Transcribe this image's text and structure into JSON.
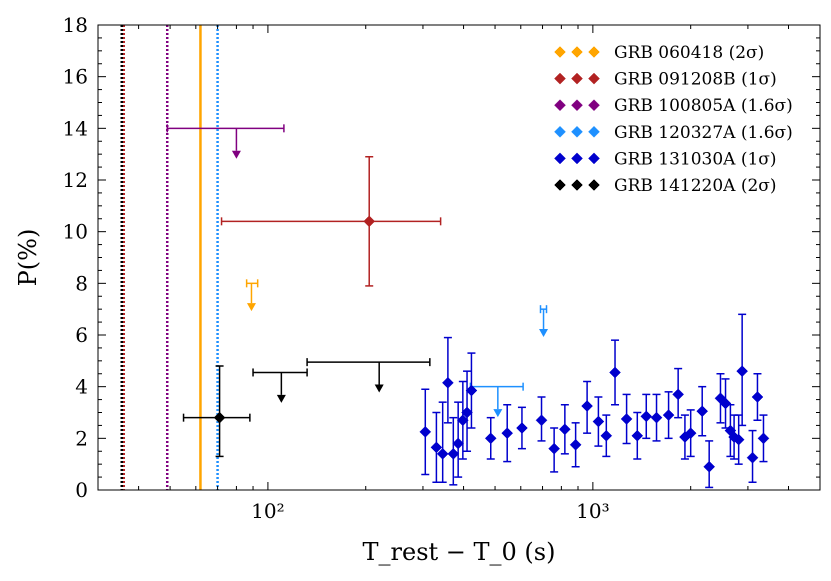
{
  "chart_data": {
    "type": "scatter",
    "title": "",
    "xlabel": "T_rest − T_0 (s)",
    "ylabel": "P(%)",
    "xscale": "log",
    "xlim": [
      30,
      5000
    ],
    "ylim": [
      0,
      18
    ],
    "xticks": [
      {
        "value": 100,
        "label": "10²"
      },
      {
        "value": 1000,
        "label": "10³"
      }
    ],
    "yticks": [
      0,
      2,
      4,
      6,
      8,
      10,
      12,
      14,
      16,
      18
    ],
    "legend_position": "top-right",
    "series": [
      {
        "name": "GRB 060418 (2σ)",
        "color": "#FFA500",
        "vline": {
          "x": 62,
          "style": "solid"
        },
        "upper_limits": [
          {
            "x": 89,
            "xerr": [
              86,
              93
            ],
            "y": 8.0,
            "drop": 1.0
          }
        ]
      },
      {
        "name": "GRB 091208B (1σ)",
        "color": "#B22222",
        "vline": {
          "x": 36,
          "style": "dotted"
        },
        "points": [
          {
            "x": 205,
            "y": 10.4,
            "xerr": [
              72,
              340
            ],
            "yerr": [
              7.9,
              12.9
            ]
          }
        ]
      },
      {
        "name": "GRB 100805A (1.6σ)",
        "color": "#800080",
        "vline": {
          "x": 49,
          "style": "dotted"
        },
        "upper_limits": [
          {
            "x": 80,
            "xerr": [
              49,
              112
            ],
            "y": 14.0,
            "drop": 1.1
          }
        ]
      },
      {
        "name": "GRB 120327A (1.6σ)",
        "color": "#1E90FF",
        "vline": {
          "x": 70,
          "style": "dotted"
        },
        "upper_limits": [
          {
            "x": 510,
            "xerr": [
              420,
              610
            ],
            "y": 4.0,
            "drop": 1.1
          },
          {
            "x": 705,
            "xerr": [
              690,
              720
            ],
            "y": 7.0,
            "drop": 1.0
          }
        ]
      },
      {
        "name": "GRB 131030A (1σ)",
        "color": "#0000CD",
        "points": [
          {
            "x": 305,
            "y": 2.25,
            "yerr": [
              0.6,
              3.9
            ]
          },
          {
            "x": 330,
            "y": 1.65,
            "yerr": [
              0.3,
              3.0
            ]
          },
          {
            "x": 345,
            "y": 1.4,
            "yerr": [
              0.3,
              3.4
            ]
          },
          {
            "x": 358,
            "y": 4.15,
            "yerr": [
              2.6,
              5.9
            ]
          },
          {
            "x": 372,
            "y": 1.4,
            "yerr": [
              0.2,
              2.8
            ]
          },
          {
            "x": 385,
            "y": 1.8,
            "yerr": [
              0.5,
              3.4
            ]
          },
          {
            "x": 398,
            "y": 2.7,
            "yerr": [
              1.2,
              4.2
            ]
          },
          {
            "x": 410,
            "y": 3.0,
            "yerr": [
              1.5,
              4.6
            ]
          },
          {
            "x": 423,
            "y": 3.85,
            "yerr": [
              2.4,
              5.3
            ]
          },
          {
            "x": 485,
            "y": 2.0,
            "yerr": [
              1.2,
              2.8
            ]
          },
          {
            "x": 545,
            "y": 2.2,
            "yerr": [
              1.1,
              3.3
            ]
          },
          {
            "x": 605,
            "y": 2.4,
            "yerr": [
              1.6,
              3.2
            ]
          },
          {
            "x": 695,
            "y": 2.7,
            "yerr": [
              1.9,
              3.6
            ]
          },
          {
            "x": 760,
            "y": 1.6,
            "yerr": [
              0.7,
              2.4
            ]
          },
          {
            "x": 820,
            "y": 2.35,
            "yerr": [
              1.4,
              3.3
            ]
          },
          {
            "x": 885,
            "y": 1.75,
            "yerr": [
              0.9,
              2.6
            ]
          },
          {
            "x": 960,
            "y": 3.25,
            "yerr": [
              2.2,
              4.2
            ]
          },
          {
            "x": 1040,
            "y": 2.65,
            "yerr": [
              1.7,
              3.6
            ]
          },
          {
            "x": 1100,
            "y": 2.1,
            "yerr": [
              1.3,
              2.9
            ]
          },
          {
            "x": 1170,
            "y": 4.55,
            "yerr": [
              3.3,
              5.8
            ]
          },
          {
            "x": 1270,
            "y": 2.75,
            "yerr": [
              1.8,
              3.7
            ]
          },
          {
            "x": 1370,
            "y": 2.1,
            "yerr": [
              1.2,
              3.0
            ]
          },
          {
            "x": 1460,
            "y": 2.85,
            "yerr": [
              2.0,
              3.7
            ]
          },
          {
            "x": 1570,
            "y": 2.8,
            "yerr": [
              1.9,
              3.7
            ]
          },
          {
            "x": 1710,
            "y": 2.9,
            "yerr": [
              2.0,
              3.8
            ]
          },
          {
            "x": 1830,
            "y": 3.7,
            "yerr": [
              2.8,
              4.7
            ]
          },
          {
            "x": 1920,
            "y": 2.05,
            "yerr": [
              1.2,
              2.9
            ]
          },
          {
            "x": 2000,
            "y": 2.2,
            "yerr": [
              1.3,
              3.1
            ]
          },
          {
            "x": 2170,
            "y": 3.05,
            "yerr": [
              2.1,
              4.0
            ]
          },
          {
            "x": 2280,
            "y": 0.9,
            "yerr": [
              0.1,
              1.9
            ]
          },
          {
            "x": 2470,
            "y": 3.55,
            "yerr": [
              2.6,
              4.5
            ]
          },
          {
            "x": 2560,
            "y": 3.35,
            "yerr": [
              2.4,
              4.3
            ]
          },
          {
            "x": 2650,
            "y": 2.3,
            "yerr": [
              1.3,
              3.3
            ]
          },
          {
            "x": 2720,
            "y": 2.05,
            "yerr": [
              1.2,
              2.9
            ]
          },
          {
            "x": 2810,
            "y": 1.95,
            "yerr": [
              1.0,
              2.9
            ]
          },
          {
            "x": 2880,
            "y": 4.6,
            "yerr": [
              2.5,
              6.8
            ]
          },
          {
            "x": 3100,
            "y": 1.25,
            "yerr": [
              0.3,
              2.3
            ]
          },
          {
            "x": 3210,
            "y": 3.6,
            "yerr": [
              2.7,
              4.5
            ]
          },
          {
            "x": 3350,
            "y": 2.0,
            "yerr": [
              1.1,
              2.9
            ]
          }
        ]
      },
      {
        "name": "GRB 141220A (2σ)",
        "color": "#000000",
        "vline": {
          "x": 35.5,
          "style": "dotted"
        },
        "points": [
          {
            "x": 71,
            "y": 2.8,
            "xerr": [
              55,
              88
            ],
            "yerr": [
              1.3,
              4.8
            ]
          }
        ],
        "upper_limits": [
          {
            "x": 110,
            "xerr": [
              90,
              132
            ],
            "y": 4.55,
            "drop": 1.1
          },
          {
            "x": 220,
            "xerr": [
              132,
              315
            ],
            "y": 4.95,
            "drop": 1.1
          }
        ]
      }
    ]
  }
}
